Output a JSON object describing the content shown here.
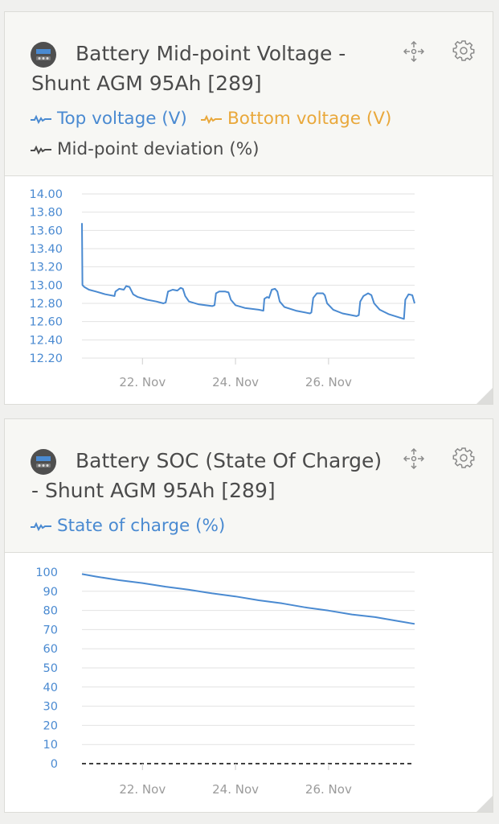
{
  "colors": {
    "blue": "#4a8ad1",
    "orange": "#e9a83b",
    "dark": "#4b4b4b",
    "grid": "#e2e2e2"
  },
  "widgets": [
    {
      "title": "Battery Mid-point Voltage - Shunt AGM 95Ah [289]",
      "icons": {
        "device": "battery-monitor-icon",
        "move": "move-arrows-icon",
        "settings": "gear-icon"
      },
      "legend": [
        {
          "label": "Top voltage (V)",
          "color": "#4a8ad1"
        },
        {
          "label": "Bottom voltage (V)",
          "color": "#e9a83b"
        },
        {
          "label": "Mid-point deviation (%)",
          "color": "#4b4b4b"
        }
      ]
    },
    {
      "title": "Battery SOC (State Of Charge) - Shunt AGM 95Ah [289]",
      "icons": {
        "device": "battery-monitor-icon",
        "move": "move-arrows-icon",
        "settings": "gear-icon"
      },
      "legend": [
        {
          "label": "State of charge (%)",
          "color": "#4a8ad1"
        }
      ]
    }
  ],
  "chart_data": [
    {
      "type": "line",
      "title": "Battery Mid-point Voltage - Shunt AGM 95Ah [289]",
      "xlabel": "",
      "ylabel": "",
      "xlim": [
        20.7,
        27.85
      ],
      "ylim": [
        12.2,
        14.0
      ],
      "y_ticks": [
        "14.00",
        "13.80",
        "13.60",
        "13.40",
        "13.20",
        "13.00",
        "12.80",
        "12.60",
        "12.40",
        "12.20"
      ],
      "x_ticks": [
        {
          "value": 22,
          "label": "22. Nov"
        },
        {
          "value": 24,
          "label": "24. Nov"
        },
        {
          "value": 26,
          "label": "26. Nov"
        }
      ],
      "grid": true,
      "series": [
        {
          "name": "Top voltage (V)",
          "color": "#4a8ad1",
          "points": [
            [
              20.7,
              13.68
            ],
            [
              20.71,
              13.0
            ],
            [
              20.75,
              12.98
            ],
            [
              20.85,
              12.95
            ],
            [
              21.0,
              12.93
            ],
            [
              21.2,
              12.9
            ],
            [
              21.4,
              12.88
            ],
            [
              21.42,
              12.93
            ],
            [
              21.5,
              12.96
            ],
            [
              21.6,
              12.95
            ],
            [
              21.65,
              12.99
            ],
            [
              21.72,
              12.98
            ],
            [
              21.8,
              12.9
            ],
            [
              21.9,
              12.87
            ],
            [
              22.1,
              12.84
            ],
            [
              22.3,
              12.82
            ],
            [
              22.45,
              12.8
            ],
            [
              22.5,
              12.81
            ],
            [
              22.55,
              12.93
            ],
            [
              22.65,
              12.95
            ],
            [
              22.75,
              12.94
            ],
            [
              22.82,
              12.97
            ],
            [
              22.87,
              12.96
            ],
            [
              22.92,
              12.88
            ],
            [
              23.0,
              12.82
            ],
            [
              23.2,
              12.79
            ],
            [
              23.5,
              12.77
            ],
            [
              23.55,
              12.78
            ],
            [
              23.58,
              12.91
            ],
            [
              23.65,
              12.93
            ],
            [
              23.78,
              12.93
            ],
            [
              23.85,
              12.92
            ],
            [
              23.9,
              12.84
            ],
            [
              24.0,
              12.78
            ],
            [
              24.2,
              12.75
            ],
            [
              24.5,
              12.73
            ],
            [
              24.6,
              12.72
            ],
            [
              24.62,
              12.85
            ],
            [
              24.68,
              12.87
            ],
            [
              24.72,
              12.86
            ],
            [
              24.78,
              12.95
            ],
            [
              24.85,
              12.96
            ],
            [
              24.9,
              12.93
            ],
            [
              24.95,
              12.82
            ],
            [
              25.05,
              12.76
            ],
            [
              25.3,
              12.72
            ],
            [
              25.6,
              12.69
            ],
            [
              25.63,
              12.7
            ],
            [
              25.67,
              12.86
            ],
            [
              25.75,
              12.91
            ],
            [
              25.88,
              12.91
            ],
            [
              25.92,
              12.89
            ],
            [
              25.97,
              12.8
            ],
            [
              26.1,
              12.73
            ],
            [
              26.3,
              12.69
            ],
            [
              26.6,
              12.66
            ],
            [
              26.65,
              12.67
            ],
            [
              26.68,
              12.82
            ],
            [
              26.75,
              12.88
            ],
            [
              26.85,
              12.91
            ],
            [
              26.92,
              12.89
            ],
            [
              26.98,
              12.8
            ],
            [
              27.1,
              12.73
            ],
            [
              27.3,
              12.68
            ],
            [
              27.55,
              12.64
            ],
            [
              27.62,
              12.63
            ],
            [
              27.65,
              12.84
            ],
            [
              27.72,
              12.9
            ],
            [
              27.8,
              12.89
            ],
            [
              27.85,
              12.8
            ]
          ]
        }
      ]
    },
    {
      "type": "line",
      "title": "Battery SOC (State Of Charge) - Shunt AGM 95Ah [289]",
      "xlabel": "",
      "ylabel": "",
      "xlim": [
        20.7,
        27.85
      ],
      "ylim": [
        0,
        100
      ],
      "y_ticks": [
        "100",
        "90",
        "80",
        "70",
        "60",
        "50",
        "40",
        "30",
        "20",
        "10",
        "0"
      ],
      "x_ticks": [
        {
          "value": 22,
          "label": "22. Nov"
        },
        {
          "value": 24,
          "label": "24. Nov"
        },
        {
          "value": 26,
          "label": "26. Nov"
        }
      ],
      "grid": true,
      "zero_line": "dashed",
      "series": [
        {
          "name": "State of charge (%)",
          "color": "#4a8ad1",
          "points": [
            [
              20.7,
              99.0
            ],
            [
              21.0,
              97.7
            ],
            [
              21.5,
              95.8
            ],
            [
              22.0,
              94.3
            ],
            [
              22.5,
              92.4
            ],
            [
              23.0,
              90.8
            ],
            [
              23.5,
              88.9
            ],
            [
              24.0,
              87.3
            ],
            [
              24.5,
              85.3
            ],
            [
              25.0,
              83.7
            ],
            [
              25.5,
              81.6
            ],
            [
              26.0,
              79.9
            ],
            [
              26.5,
              77.9
            ],
            [
              27.0,
              76.5
            ],
            [
              27.5,
              74.4
            ],
            [
              27.85,
              73.0
            ]
          ]
        }
      ]
    }
  ]
}
